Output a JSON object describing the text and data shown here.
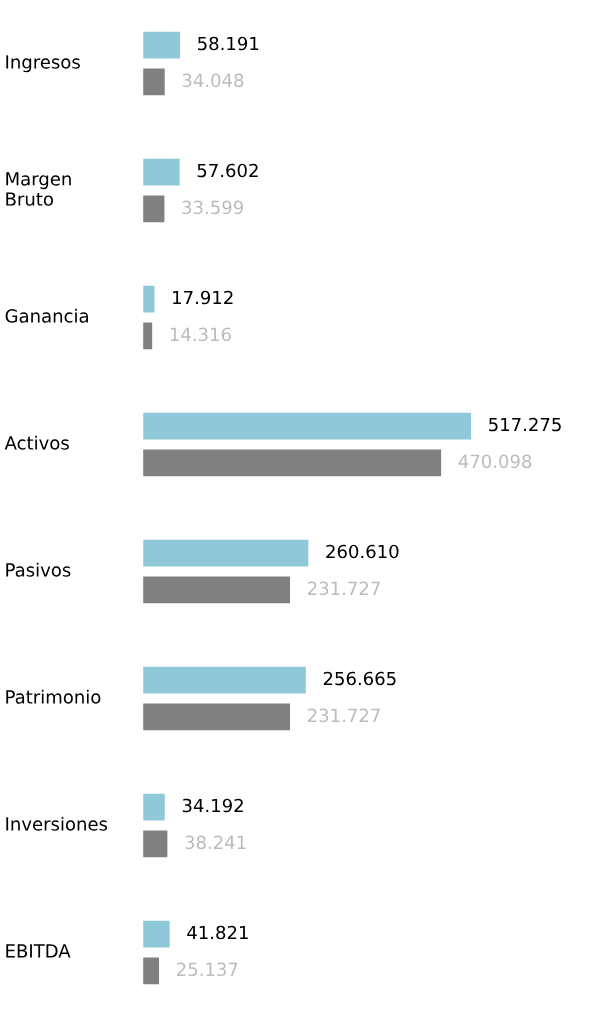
{
  "chart_data": {
    "type": "bar",
    "orientation": "horizontal",
    "categories": [
      "Ingresos",
      "Margen Bruto",
      "Ganancia",
      "Activos",
      "Pasivos",
      "Patrimonio",
      "Inversiones",
      "EBITDA"
    ],
    "series": [
      {
        "color": "#8fc9d9",
        "values": [
          58191,
          57602,
          17912,
          517275,
          260610,
          256665,
          34192,
          41821
        ],
        "value_labels": [
          "58.191",
          "57.602",
          "17.912",
          "517.275",
          "260.610",
          "256.665",
          "34.192",
          "41.821"
        ]
      },
      {
        "color": "#808080",
        "values": [
          34048,
          33599,
          14316,
          470098,
          231727,
          231727,
          38241,
          25137
        ],
        "value_labels": [
          "34.048",
          "33.599",
          "14.316",
          "470.098",
          "231.727",
          "231.727",
          "38.241",
          "25.137"
        ]
      }
    ],
    "legend": false
  }
}
